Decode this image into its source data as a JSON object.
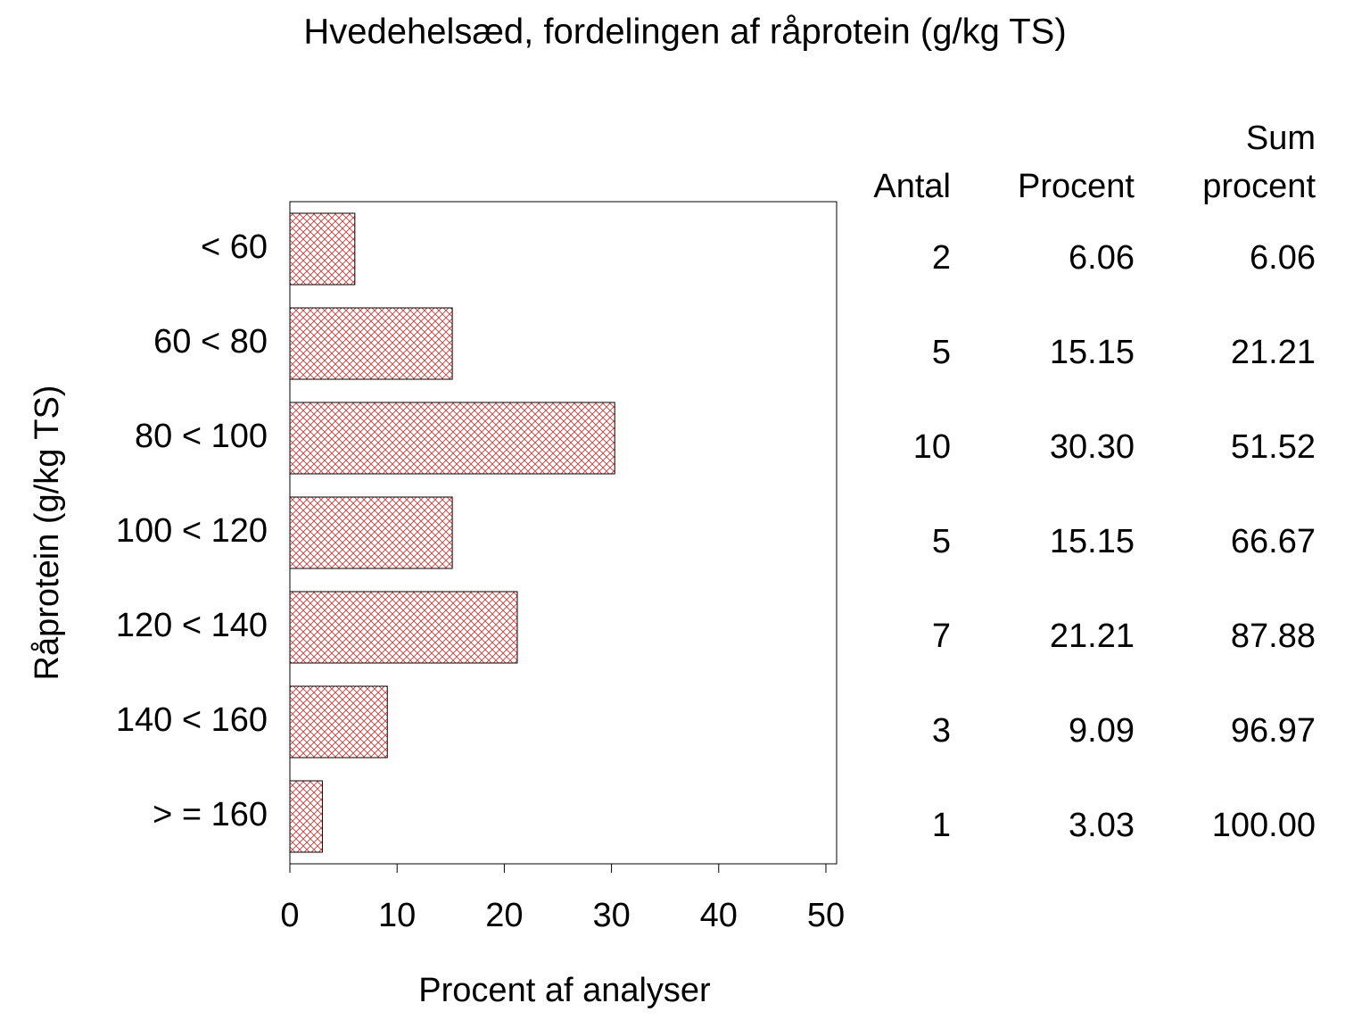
{
  "chart_data": {
    "type": "hbar",
    "title": "Hvedehelsæd, fordelingen af råprotein (g/kg TS)",
    "x_label": "Procent af analyser",
    "y_label": "Råprotein (g/kg TS)",
    "categories": [
      "< 60",
      "60 < 80",
      "80 < 100",
      "100 < 120",
      "120 < 140",
      "140 < 160",
      "> = 160"
    ],
    "values": [
      6.06,
      15.15,
      30.3,
      15.15,
      21.21,
      9.09,
      3.03
    ],
    "value_labels": [
      "6.06",
      "15.15",
      "30.30",
      "15.15",
      "21.21",
      "9.09",
      "3.03"
    ],
    "color": "#e03030",
    "xlim": [
      0,
      51
    ],
    "xticks": [
      0,
      10,
      20,
      30,
      40,
      50
    ],
    "count_header": "Antal",
    "percent_header": "Procent",
    "cumulative_header": [
      "Sum",
      "procent"
    ],
    "counts": [
      2,
      5,
      10,
      5,
      7,
      3,
      1
    ],
    "cumulative_labels": [
      "6.06",
      "21.21",
      "51.52",
      "66.67",
      "87.88",
      "96.97",
      "100.00"
    ]
  }
}
